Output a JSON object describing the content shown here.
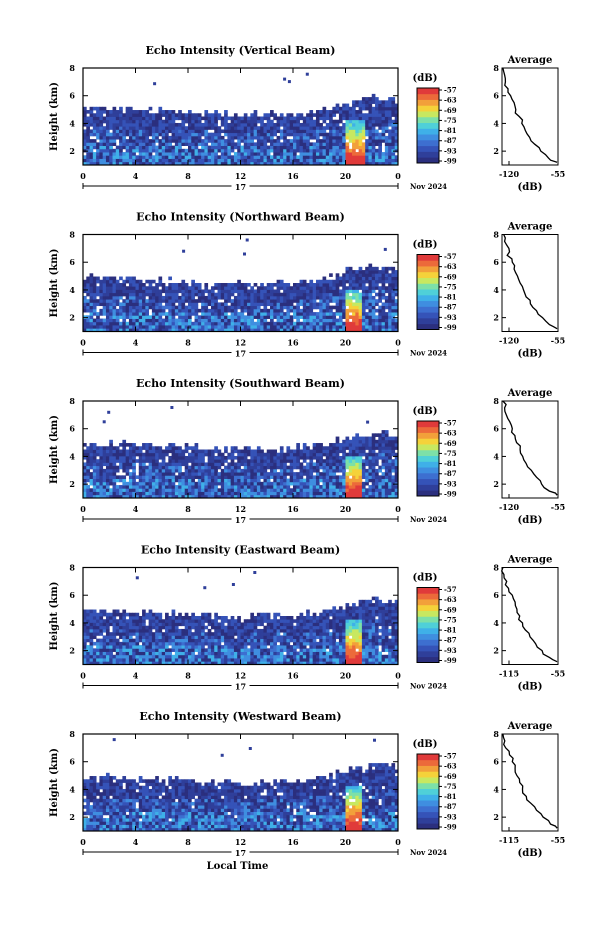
{
  "colors": {
    "bg": "#ffffff",
    "empty": "#ffffff",
    "scale": [
      "#2b2f7e",
      "#2f3f9a",
      "#3553b8",
      "#3d6fd0",
      "#3f8ee0",
      "#3fb0e8",
      "#4fd0d8",
      "#7de0a8",
      "#c8e860",
      "#f5d23a",
      "#f2a03a",
      "#ec6a3a",
      "#e03a3a"
    ]
  },
  "chart_data": [
    {
      "type": "heatmap",
      "title": "Echo Intensity (Vertical Beam)",
      "ylabel": "Height (km)",
      "xlabel": "",
      "x_ticks": [
        "0",
        "4",
        "8",
        "12",
        "16",
        "20",
        "0"
      ],
      "y_ticks": [
        "2",
        "4",
        "6",
        "8"
      ],
      "xlim": [
        0,
        24
      ],
      "ylim": [
        1,
        8
      ],
      "date_day": "17",
      "date_month": "Nov 2024",
      "colorbar": {
        "unit": "(dB)",
        "labels": [
          "-57",
          "-63",
          "-69",
          "-75",
          "-81",
          "-87",
          "-93",
          "-99"
        ],
        "range": [
          -99,
          -57
        ]
      },
      "profile": {
        "title": "Average",
        "xlabel": "(dB)",
        "x_ticks": [
          "-120",
          "-55"
        ],
        "xlim": [
          -120,
          -55
        ],
        "y_ticks": [
          "2",
          "4",
          "6",
          "8"
        ],
        "ylim": [
          1,
          8
        ],
        "heights": [
          8,
          7.5,
          7,
          6.5,
          6,
          5.5,
          5,
          4.5,
          4,
          3.5,
          3,
          2.5,
          2,
          1.5,
          1.2
        ],
        "values": [
          -119,
          -117,
          -116,
          -113,
          -110,
          -106,
          -104,
          -100,
          -97,
          -93,
          -88,
          -82,
          -75,
          -66,
          -56
        ]
      },
      "top_edge": [
        [
          0,
          5.1
        ],
        [
          4,
          5.0
        ],
        [
          8,
          4.8
        ],
        [
          12,
          4.6
        ],
        [
          16,
          4.7
        ],
        [
          18,
          4.9
        ],
        [
          20,
          5.4
        ],
        [
          22,
          5.9
        ],
        [
          24,
          5.6
        ]
      ],
      "core": {
        "x": [
          20.0,
          21.4
        ],
        "top": 4.2,
        "base": 1.1
      }
    },
    {
      "type": "heatmap",
      "title": "Echo Intensity (Northward Beam)",
      "ylabel": "Height (km)",
      "xlabel": "",
      "x_ticks": [
        "0",
        "4",
        "8",
        "12",
        "16",
        "20",
        "0"
      ],
      "y_ticks": [
        "2",
        "4",
        "6",
        "8"
      ],
      "xlim": [
        0,
        24
      ],
      "ylim": [
        1,
        8
      ],
      "date_day": "17",
      "date_month": "Nov 2024",
      "colorbar": {
        "unit": "(dB)",
        "labels": [
          "-57",
          "-63",
          "-69",
          "-75",
          "-81",
          "-87",
          "-93",
          "-99"
        ],
        "range": [
          -99,
          -57
        ]
      },
      "profile": {
        "title": "Average",
        "xlabel": "(dB)",
        "x_ticks": [
          "-120",
          "-55"
        ],
        "xlim": [
          -120,
          -55
        ],
        "y_ticks": [
          "2",
          "4",
          "6",
          "8"
        ],
        "ylim": [
          1,
          8
        ],
        "heights": [
          8,
          7.5,
          7,
          6.5,
          6,
          5.5,
          5,
          4.5,
          4,
          3.5,
          3,
          2.5,
          2,
          1.5,
          1.2
        ],
        "values": [
          -118,
          -117,
          -112,
          -114,
          -108,
          -106,
          -102,
          -99,
          -95,
          -92,
          -87,
          -80,
          -73,
          -65,
          -56
        ]
      },
      "top_edge": [
        [
          0,
          5.0
        ],
        [
          4,
          4.8
        ],
        [
          8,
          4.6
        ],
        [
          12,
          4.4
        ],
        [
          16,
          4.5
        ],
        [
          18,
          4.7
        ],
        [
          20,
          5.3
        ],
        [
          22,
          5.7
        ],
        [
          24,
          5.5
        ]
      ],
      "core": {
        "x": [
          20.0,
          21.3
        ],
        "top": 4.0,
        "base": 1.1
      }
    },
    {
      "type": "heatmap",
      "title": "Echo Intensity (Southward Beam)",
      "ylabel": "Height (km)",
      "xlabel": "",
      "x_ticks": [
        "0",
        "4",
        "8",
        "12",
        "16",
        "20",
        "0"
      ],
      "y_ticks": [
        "2",
        "4",
        "6",
        "8"
      ],
      "xlim": [
        0,
        24
      ],
      "ylim": [
        1,
        8
      ],
      "date_day": "17",
      "date_month": "Nov 2024",
      "colorbar": {
        "unit": "(dB)",
        "labels": [
          "-57",
          "-63",
          "-69",
          "-75",
          "-81",
          "-87",
          "-93",
          "-99"
        ],
        "range": [
          -99,
          -57
        ]
      },
      "profile": {
        "title": "Average",
        "xlabel": "(dB)",
        "x_ticks": [
          "-120",
          "-55"
        ],
        "xlim": [
          -120,
          -55
        ],
        "y_ticks": [
          "2",
          "4",
          "6",
          "8"
        ],
        "ylim": [
          1,
          8
        ],
        "heights": [
          8,
          7.5,
          7,
          6.5,
          6,
          5.5,
          5,
          4.5,
          4,
          3.5,
          3,
          2.5,
          2,
          1.5,
          1.2
        ],
        "values": [
          -119,
          -117,
          -115,
          -111,
          -108,
          -105,
          -103,
          -99,
          -96,
          -92,
          -86,
          -80,
          -74,
          -65,
          -56
        ]
      },
      "top_edge": [
        [
          0,
          5.0
        ],
        [
          4,
          4.9
        ],
        [
          8,
          4.7
        ],
        [
          12,
          4.5
        ],
        [
          16,
          4.6
        ],
        [
          18,
          4.8
        ],
        [
          20,
          5.3
        ],
        [
          22,
          5.8
        ],
        [
          24,
          5.6
        ]
      ],
      "core": {
        "x": [
          20.0,
          21.3
        ],
        "top": 4.1,
        "base": 1.1
      }
    },
    {
      "type": "heatmap",
      "title": "Echo Intensity (Eastward Beam)",
      "ylabel": "Height (km)",
      "xlabel": "",
      "x_ticks": [
        "0",
        "4",
        "8",
        "12",
        "16",
        "20",
        "0"
      ],
      "y_ticks": [
        "2",
        "4",
        "6",
        "8"
      ],
      "xlim": [
        0,
        24
      ],
      "ylim": [
        1,
        8
      ],
      "date_day": "17",
      "date_month": "Nov 2024",
      "colorbar": {
        "unit": "(dB)",
        "labels": [
          "-57",
          "-63",
          "-69",
          "-75",
          "-81",
          "-87",
          "-93",
          "-99"
        ],
        "range": [
          -99,
          -57
        ]
      },
      "profile": {
        "title": "Average",
        "xlabel": "(dB)",
        "x_ticks": [
          "-115",
          "-55"
        ],
        "xlim": [
          -115,
          -55
        ],
        "y_ticks": [
          "2",
          "4",
          "6",
          "8"
        ],
        "ylim": [
          1,
          8
        ],
        "heights": [
          8,
          7.5,
          7,
          6.5,
          6,
          5.5,
          5,
          4.5,
          4,
          3.5,
          3,
          2.5,
          2,
          1.5,
          1.2
        ],
        "values": [
          -114,
          -113,
          -110,
          -108,
          -104,
          -101,
          -99,
          -96,
          -93,
          -90,
          -85,
          -79,
          -72,
          -64,
          -56
        ]
      },
      "top_edge": [
        [
          0,
          5.0
        ],
        [
          4,
          4.8
        ],
        [
          8,
          4.6
        ],
        [
          12,
          4.5
        ],
        [
          16,
          4.6
        ],
        [
          18,
          4.8
        ],
        [
          20,
          5.2
        ],
        [
          22,
          5.7
        ],
        [
          24,
          5.5
        ]
      ],
      "core": {
        "x": [
          20.0,
          21.3
        ],
        "top": 4.2,
        "base": 1.1
      }
    },
    {
      "type": "heatmap",
      "title": "Echo Intensity (Westward Beam)",
      "ylabel": "Height (km)",
      "xlabel": "Local Time",
      "x_ticks": [
        "0",
        "4",
        "8",
        "12",
        "16",
        "20",
        "0"
      ],
      "y_ticks": [
        "2",
        "4",
        "6",
        "8"
      ],
      "xlim": [
        0,
        24
      ],
      "ylim": [
        1,
        8
      ],
      "date_day": "17",
      "date_month": "Nov 2024",
      "colorbar": {
        "unit": "(dB)",
        "labels": [
          "-57",
          "-63",
          "-69",
          "-75",
          "-81",
          "-87",
          "-93",
          "-99"
        ],
        "range": [
          -99,
          -57
        ]
      },
      "profile": {
        "title": "Average",
        "xlabel": "(dB)",
        "x_ticks": [
          "-115",
          "-55"
        ],
        "xlim": [
          -115,
          -55
        ],
        "y_ticks": [
          "2",
          "4",
          "6",
          "8"
        ],
        "ylim": [
          1,
          8
        ],
        "heights": [
          8,
          7.5,
          7,
          6.5,
          6,
          5.5,
          5,
          4.5,
          4,
          3.5,
          3,
          2.5,
          2,
          1.5,
          1.2
        ],
        "values": [
          -114,
          -112,
          -111,
          -107,
          -104,
          -101,
          -99,
          -96,
          -93,
          -89,
          -84,
          -78,
          -71,
          -63,
          -56
        ]
      },
      "top_edge": [
        [
          0,
          5.0
        ],
        [
          4,
          4.8
        ],
        [
          8,
          4.6
        ],
        [
          12,
          4.5
        ],
        [
          16,
          4.6
        ],
        [
          18,
          4.8
        ],
        [
          20,
          5.3
        ],
        [
          22,
          5.8
        ],
        [
          24,
          5.6
        ]
      ],
      "core": {
        "x": [
          20.0,
          21.3
        ],
        "top": 4.2,
        "base": 1.1
      }
    }
  ]
}
